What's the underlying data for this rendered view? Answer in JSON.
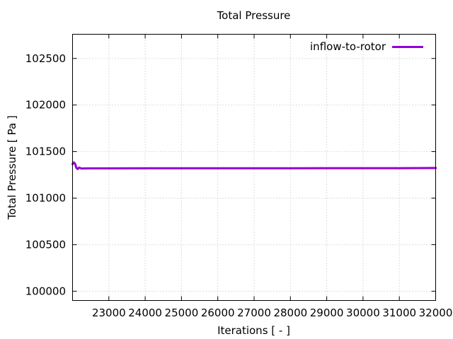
{
  "title": "Total Pressure",
  "axes": {
    "x_label": "Iterations [ - ]",
    "y_label": "Total Pressure [ Pa ]"
  },
  "legend": {
    "position": "top-right",
    "entries": [
      {
        "label": "inflow-to-rotor",
        "color": "#9400D3"
      }
    ]
  },
  "colors": {
    "background": "#ffffff",
    "border": "#000000",
    "grid": "#bbbbbb",
    "text": "#000000",
    "series_purple": "#9400D3"
  },
  "chart_data": {
    "type": "line",
    "title": "Total Pressure",
    "xlabel": "Iterations [ - ]",
    "ylabel": "Total Pressure [ Pa ]",
    "xlim": [
      22000,
      32000
    ],
    "ylim": [
      99900,
      102760
    ],
    "x_ticks": [
      23000,
      24000,
      25000,
      26000,
      27000,
      28000,
      29000,
      30000,
      31000,
      32000
    ],
    "y_ticks": [
      100000,
      100500,
      101000,
      101500,
      102000,
      102500
    ],
    "grid": true,
    "grid_style": "dotted",
    "legend_position": "top-right",
    "series": [
      {
        "name": "inflow-to-rotor",
        "color": "#9400D3",
        "line_width": 3,
        "x": [
          22000,
          22035,
          22070,
          22105,
          22140,
          22180,
          22250,
          22400,
          22700,
          23000,
          24000,
          25000,
          26000,
          27000,
          28000,
          29000,
          30000,
          31000,
          32000
        ],
        "y": [
          101365,
          101383,
          101368,
          101325,
          101312,
          101328,
          101318,
          101319,
          101319,
          101319,
          101320,
          101320,
          101320,
          101321,
          101321,
          101322,
          101322,
          101322,
          101323
        ]
      }
    ]
  }
}
